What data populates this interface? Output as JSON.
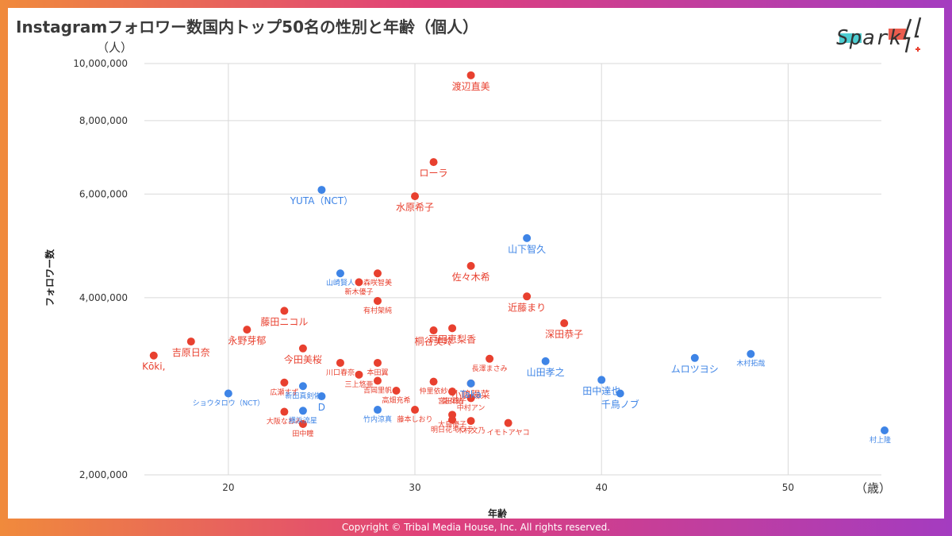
{
  "title": "Instagramフォロワー数国内トップ50名の性別と年齢（個人）",
  "footer": "Copyright © Tribal Media House, Inc. All rights reserved.",
  "logo": {
    "text": "Spark!!"
  },
  "colors": {
    "female": "#e8402f",
    "male": "#3e84e6",
    "grid": "#d9d9d9",
    "background": "#ffffff"
  },
  "chart_data": {
    "type": "scatter",
    "xlabel": "年齢",
    "ylabel": "フォロワー数",
    "x_unit": "（歳）",
    "y_unit": "（人）",
    "x_ticks": [
      20,
      30,
      40,
      50
    ],
    "y_ticks": [
      2000000,
      4000000,
      6000000,
      8000000,
      10000000
    ],
    "y_tick_labels": [
      "2,000,000",
      "4,000,000",
      "6,000,000",
      "8,000,000",
      "10,000,000"
    ],
    "xlim": [
      15.5,
      55
    ],
    "y_scale": "log",
    "ylim": [
      2000000,
      10000000
    ],
    "grid": true,
    "series": [
      {
        "gender": "female",
        "points": [
          {
            "label": "渡辺直美",
            "x": 33,
            "y": 9550000
          },
          {
            "label": "ローラ",
            "x": 31,
            "y": 6800000
          },
          {
            "label": "水原希子",
            "x": 30,
            "y": 5950000
          },
          {
            "label": "佐々木希",
            "x": 33,
            "y": 4530000
          },
          {
            "label": "近藤まり",
            "x": 36,
            "y": 4020000
          },
          {
            "label": "森咲智美",
            "x": 28,
            "y": 4400000
          },
          {
            "label": "新木優子",
            "x": 27,
            "y": 4250000
          },
          {
            "label": "有村架純",
            "x": 28,
            "y": 3950000
          },
          {
            "label": "藤田ニコル",
            "x": 23,
            "y": 3800000
          },
          {
            "label": "永野芽郁",
            "x": 21,
            "y": 3530000
          },
          {
            "label": "吉原日奈",
            "x": 18,
            "y": 3370000
          },
          {
            "label": "Kōki,",
            "x": 16,
            "y": 3190000
          },
          {
            "label": "今田美桜",
            "x": 24,
            "y": 3280000
          },
          {
            "label": "深田恭子",
            "x": 38,
            "y": 3620000
          },
          {
            "label": "桐谷美玲",
            "x": 31,
            "y": 3520000
          },
          {
            "label": "戸田恵梨香",
            "x": 32,
            "y": 3550000
          },
          {
            "label": "長澤まさみ",
            "x": 34,
            "y": 3150000
          },
          {
            "label": "川口春奈",
            "x": 26,
            "y": 3100000
          },
          {
            "label": "本田翼",
            "x": 28,
            "y": 3100000
          },
          {
            "label": "三上悠亜",
            "x": 27,
            "y": 2960000
          },
          {
            "label": "広瀬すず",
            "x": 23,
            "y": 2870000
          },
          {
            "label": "吉岡里帆",
            "x": 28,
            "y": 2890000
          },
          {
            "label": "仲里依紗",
            "x": 31,
            "y": 2880000
          },
          {
            "label": "高畑充希",
            "x": 29,
            "y": 2780000
          },
          {
            "label": "小嶋陽菜",
            "x": 33,
            "y": 2860000
          },
          {
            "label": "宮田聡子",
            "x": 32,
            "y": 2770000
          },
          {
            "label": "菜々緒",
            "x": 32,
            "y": 2770000
          },
          {
            "label": "中村アン",
            "x": 33,
            "y": 2700000
          },
          {
            "label": "大阪なおみ",
            "x": 23,
            "y": 2560000
          },
          {
            "label": "田中瞳",
            "x": 24,
            "y": 2440000
          },
          {
            "label": "藤本しおり",
            "x": 30,
            "y": 2580000
          },
          {
            "label": "大島優子",
            "x": 32,
            "y": 2530000
          },
          {
            "label": "明日花キララ",
            "x": 32,
            "y": 2480000
          },
          {
            "label": "木村文乃",
            "x": 33,
            "y": 2470000
          },
          {
            "label": "イモトアヤコ",
            "x": 35,
            "y": 2450000
          }
        ]
      },
      {
        "gender": "male",
        "points": [
          {
            "label": "YUTA（NCT）",
            "x": 25,
            "y": 6100000
          },
          {
            "label": "山下智久",
            "x": 36,
            "y": 5050000
          },
          {
            "label": "山崎賢人",
            "x": 26,
            "y": 4400000
          },
          {
            "label": "山田孝之",
            "x": 37,
            "y": 3120000
          },
          {
            "label": "ムロツヨシ",
            "x": 45,
            "y": 3160000
          },
          {
            "label": "木村拓哉",
            "x": 48,
            "y": 3210000
          },
          {
            "label": "田中達也",
            "x": 40,
            "y": 2900000
          },
          {
            "label": "千鳥ノブ",
            "x": 41,
            "y": 2750000
          },
          {
            "label": "新田真剣佑",
            "x": 24,
            "y": 2830000
          },
          {
            "label": "Taka",
            "x": 33,
            "y": 2860000
          },
          {
            "label": "D",
            "x": 25,
            "y": 2720000
          },
          {
            "label": "ショウタロウ（NCT）",
            "x": 20,
            "y": 2750000
          },
          {
            "label": "竹内涼真",
            "x": 28,
            "y": 2580000
          },
          {
            "label": "横浜流星",
            "x": 24,
            "y": 2570000
          },
          {
            "label": "村上隆",
            "x": 57,
            "y": 2380000
          }
        ]
      }
    ]
  }
}
